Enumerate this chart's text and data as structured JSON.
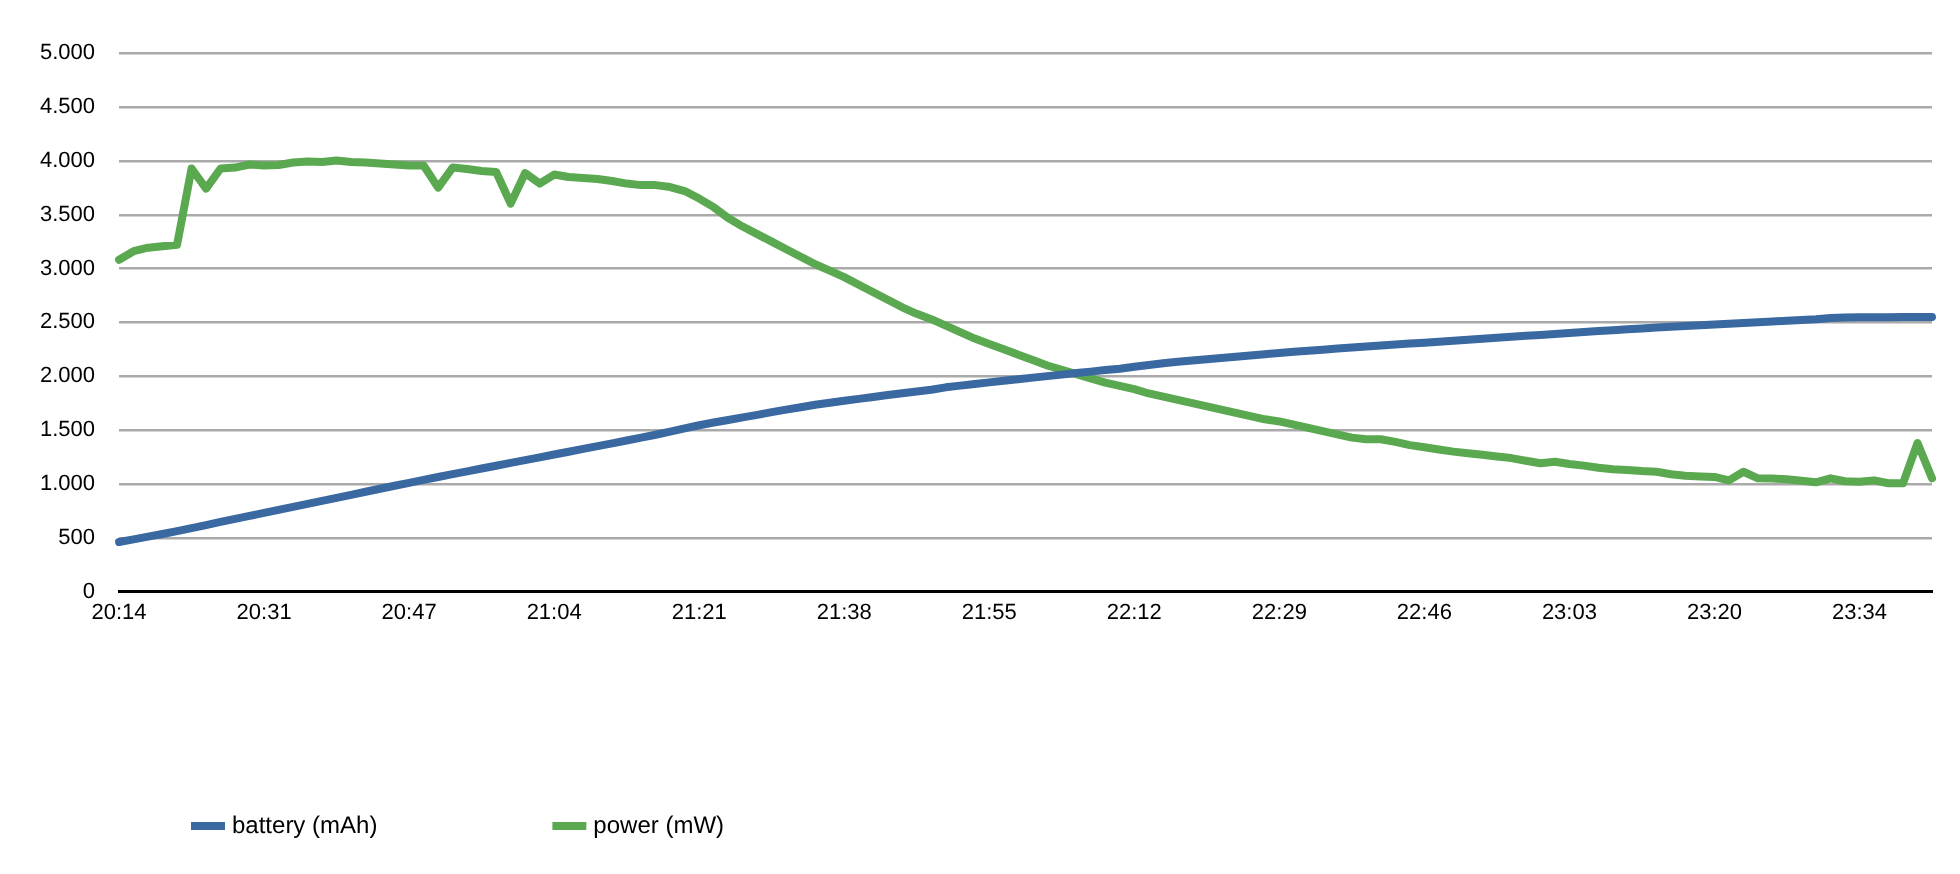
{
  "chart_data": {
    "type": "line",
    "categories": [
      "20:14",
      null,
      null,
      null,
      null,
      null,
      null,
      null,
      null,
      null,
      "20:31",
      null,
      null,
      null,
      null,
      null,
      null,
      null,
      null,
      null,
      "20:47",
      null,
      null,
      null,
      null,
      null,
      null,
      null,
      null,
      null,
      "21:04",
      null,
      null,
      null,
      null,
      null,
      null,
      null,
      null,
      null,
      "21:21",
      null,
      null,
      null,
      null,
      null,
      null,
      null,
      null,
      null,
      "21:38",
      null,
      null,
      null,
      null,
      null,
      null,
      null,
      null,
      null,
      "21:55",
      null,
      null,
      null,
      null,
      null,
      null,
      null,
      null,
      null,
      "22:12",
      null,
      null,
      null,
      null,
      null,
      null,
      null,
      null,
      null,
      "22:29",
      null,
      null,
      null,
      null,
      null,
      null,
      null,
      null,
      null,
      "22:46",
      null,
      null,
      null,
      null,
      null,
      null,
      null,
      null,
      null,
      "23:03",
      null,
      null,
      null,
      null,
      null,
      null,
      null,
      null,
      null,
      "23:20",
      null,
      null,
      null,
      null,
      null,
      null,
      null,
      null,
      null,
      "23:34",
      null,
      null,
      null,
      null,
      null
    ],
    "series": [
      {
        "name": "battery (mAh)",
        "color": "#3a68a0",
        "values": [
          461,
          485,
          510,
          535,
          562,
          590,
          618,
          647,
          675,
          703,
          731,
          759,
          787,
          815,
          843,
          871,
          899,
          927,
          955,
          983,
          1010,
          1037,
          1064,
          1091,
          1117,
          1143,
          1169,
          1195,
          1221,
          1247,
          1273,
          1299,
          1325,
          1351,
          1377,
          1403,
          1430,
          1457,
          1485,
          1515,
          1545,
          1570,
          1594,
          1618,
          1641,
          1667,
          1690,
          1712,
          1735,
          1754,
          1772,
          1790,
          1808,
          1825,
          1842,
          1858,
          1874,
          1897,
          1913,
          1928,
          1943,
          1958,
          1972,
          1987,
          2001,
          2015,
          2030,
          2043,
          2057,
          2070,
          2088,
          2104,
          2120,
          2134,
          2146,
          2158,
          2170,
          2182,
          2193,
          2205,
          2216,
          2227,
          2237,
          2247,
          2257,
          2266,
          2276,
          2285,
          2294,
          2303,
          2312,
          2321,
          2330,
          2339,
          2348,
          2357,
          2366,
          2375,
          2384,
          2393,
          2402,
          2411,
          2420,
          2428,
          2436,
          2444,
          2452,
          2460,
          2467,
          2474,
          2481,
          2488,
          2495,
          2502,
          2509,
          2516,
          2523,
          2530,
          2540,
          2545,
          2547,
          2548,
          2548,
          2549,
          2549,
          2550
        ]
      },
      {
        "name": "power (mW)",
        "color": "#5aa84f",
        "values": [
          3082,
          3161,
          3194,
          3208,
          3222,
          3929,
          3743,
          3929,
          3938,
          3966,
          3957,
          3962,
          3985,
          3994,
          3990,
          4004,
          3990,
          3985,
          3976,
          3966,
          3957,
          3957,
          3752,
          3938,
          3924,
          3906,
          3897,
          3603,
          3887,
          3789,
          3873,
          3850,
          3841,
          3831,
          3813,
          3789,
          3775,
          3775,
          3757,
          3720,
          3650,
          3570,
          3470,
          3390,
          3320,
          3250,
          3180,
          3110,
          3040,
          2980,
          2920,
          2850,
          2780,
          2710,
          2640,
          2580,
          2530,
          2470,
          2410,
          2350,
          2300,
          2250,
          2200,
          2150,
          2100,
          2060,
          2020,
          1980,
          1940,
          1910,
          1880,
          1840,
          1810,
          1780,
          1750,
          1720,
          1690,
          1660,
          1630,
          1600,
          1580,
          1550,
          1520,
          1490,
          1460,
          1430,
          1415,
          1415,
          1390,
          1360,
          1340,
          1320,
          1300,
          1285,
          1270,
          1255,
          1240,
          1215,
          1192,
          1206,
          1185,
          1170,
          1150,
          1136,
          1130,
          1120,
          1113,
          1090,
          1075,
          1070,
          1065,
          1033,
          1113,
          1052,
          1050,
          1043,
          1030,
          1015,
          1052,
          1025,
          1020,
          1033,
          1006,
          1006,
          1380,
          1052
        ]
      }
    ],
    "ylim": [
      0,
      5000
    ],
    "yticks": [
      0,
      500,
      {
        "value": 1000,
        "label": "1.000"
      },
      {
        "value": 1500,
        "label": "1.500"
      },
      {
        "value": 2000,
        "label": "2.000"
      },
      {
        "value": 2500,
        "label": "2.500"
      },
      {
        "value": 3000,
        "label": "3.000"
      },
      {
        "value": 3500,
        "label": "3.500"
      },
      {
        "value": 4000,
        "label": "4.000"
      },
      {
        "value": 4500,
        "label": "4.500"
      },
      {
        "value": 5000,
        "label": "5.000"
      }
    ],
    "grid": "y",
    "legend": "bottom left",
    "marker": "none",
    "line_style": "solid"
  }
}
